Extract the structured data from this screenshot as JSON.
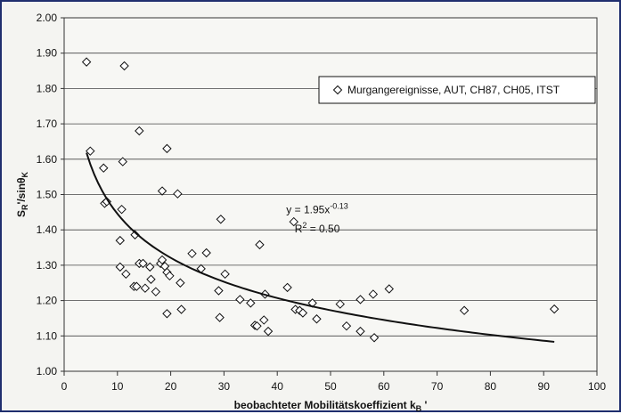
{
  "chart_data": {
    "type": "scatter",
    "xlabel": "beobachteter Mobilitätskoeffizient k",
    "xlabel_sub": "B",
    "xlabel_prime": " '",
    "ylabel_main": "S",
    "ylabel_sub": "R",
    "ylabel_rest": "'/sinθ",
    "ylabel_sub2": "K",
    "xlim": [
      0,
      100
    ],
    "ylim": [
      1.0,
      2.0
    ],
    "x_ticks": [
      "0",
      "10",
      "20",
      "30",
      "40",
      "50",
      "60",
      "70",
      "80",
      "90",
      "100"
    ],
    "y_ticks": [
      "1.00",
      "1.10",
      "1.20",
      "1.30",
      "1.40",
      "1.50",
      "1.60",
      "1.70",
      "1.80",
      "1.90",
      "2.00"
    ],
    "grid": "horizontal",
    "legend_position": "top-right",
    "series": [
      {
        "name": "Murgangereignisse, AUT, CH87, CH05, ITST",
        "marker": "diamond",
        "points": [
          [
            4.2,
            1.875
          ],
          [
            4.9,
            1.623
          ],
          [
            11.3,
            1.864
          ],
          [
            7.4,
            1.575
          ],
          [
            7.6,
            1.475
          ],
          [
            8.0,
            1.48
          ],
          [
            11.0,
            1.593
          ],
          [
            10.8,
            1.458
          ],
          [
            14.1,
            1.68
          ],
          [
            19.3,
            1.63
          ],
          [
            18.4,
            1.51
          ],
          [
            21.3,
            1.502
          ],
          [
            13.3,
            1.386
          ],
          [
            10.5,
            1.37
          ],
          [
            10.5,
            1.295
          ],
          [
            11.6,
            1.275
          ],
          [
            13.1,
            1.24
          ],
          [
            13.6,
            1.24
          ],
          [
            14.1,
            1.305
          ],
          [
            14.8,
            1.305
          ],
          [
            15.2,
            1.235
          ],
          [
            16.3,
            1.26
          ],
          [
            16.1,
            1.295
          ],
          [
            17.2,
            1.225
          ],
          [
            18.1,
            1.305
          ],
          [
            18.4,
            1.315
          ],
          [
            18.9,
            1.297
          ],
          [
            19.3,
            1.28
          ],
          [
            19.8,
            1.27
          ],
          [
            19.3,
            1.163
          ],
          [
            21.8,
            1.25
          ],
          [
            22.0,
            1.175
          ],
          [
            24.0,
            1.333
          ],
          [
            25.7,
            1.29
          ],
          [
            26.7,
            1.335
          ],
          [
            29.4,
            1.43
          ],
          [
            29.0,
            1.228
          ],
          [
            29.2,
            1.152
          ],
          [
            30.2,
            1.275
          ],
          [
            33.0,
            1.203
          ],
          [
            35.0,
            1.193
          ],
          [
            35.8,
            1.13
          ],
          [
            36.2,
            1.128
          ],
          [
            36.7,
            1.358
          ],
          [
            37.5,
            1.145
          ],
          [
            37.7,
            1.218
          ],
          [
            38.3,
            1.113
          ],
          [
            41.9,
            1.237
          ],
          [
            43.1,
            1.423
          ],
          [
            43.4,
            1.175
          ],
          [
            44.2,
            1.172
          ],
          [
            44.8,
            1.165
          ],
          [
            46.6,
            1.193
          ],
          [
            47.4,
            1.148
          ],
          [
            51.8,
            1.19
          ],
          [
            53.0,
            1.128
          ],
          [
            55.6,
            1.203
          ],
          [
            55.6,
            1.113
          ],
          [
            58.0,
            1.218
          ],
          [
            58.2,
            1.095
          ],
          [
            61.0,
            1.233
          ],
          [
            75.1,
            1.172
          ],
          [
            92.0,
            1.176
          ]
        ]
      }
    ],
    "trendline": {
      "model": "power",
      "a": 1.95,
      "b": -0.13,
      "x_from": 4.2,
      "x_to": 92,
      "equation_base": "y = 1.95x",
      "equation_exp": "-0.13",
      "r2_base": "R",
      "r2_exp": "2",
      "r2_value": " = 0.50"
    }
  }
}
